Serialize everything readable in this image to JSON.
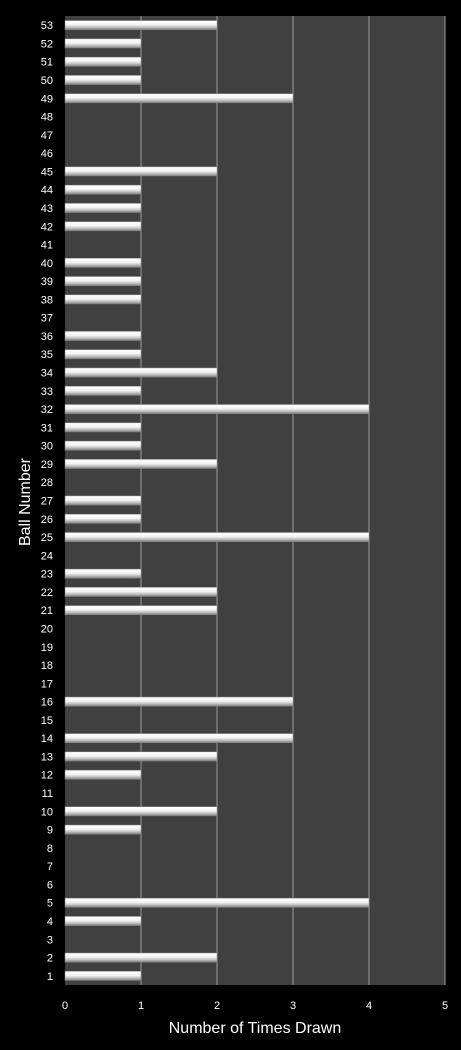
{
  "chart_data": {
    "type": "bar",
    "orientation": "horizontal",
    "title": "",
    "xlabel": "Number of Times Drawn",
    "ylabel": "Ball Number",
    "xlim": [
      0,
      5
    ],
    "xticks": [
      "0",
      "1",
      "2",
      "3",
      "4",
      "5"
    ],
    "grid": "vertical",
    "legend": "none",
    "colors": {
      "background": "#000000",
      "plot_area": "#404040",
      "bar": "#e6e6e6",
      "gridline": "#9a9a9a",
      "text": "#ffffff"
    },
    "categories": [
      "1",
      "2",
      "3",
      "4",
      "5",
      "6",
      "7",
      "8",
      "9",
      "10",
      "11",
      "12",
      "13",
      "14",
      "15",
      "16",
      "17",
      "18",
      "19",
      "20",
      "21",
      "22",
      "23",
      "24",
      "25",
      "26",
      "27",
      "28",
      "29",
      "30",
      "31",
      "32",
      "33",
      "34",
      "35",
      "36",
      "37",
      "38",
      "39",
      "40",
      "41",
      "42",
      "43",
      "44",
      "45",
      "46",
      "47",
      "48",
      "49",
      "50",
      "51",
      "52",
      "53"
    ],
    "values": [
      1,
      2,
      0,
      1,
      4,
      0,
      0,
      0,
      1,
      2,
      0,
      1,
      2,
      3,
      0,
      3,
      0,
      0,
      0,
      0,
      2,
      2,
      1,
      0,
      4,
      1,
      1,
      0,
      2,
      1,
      1,
      4,
      1,
      2,
      1,
      1,
      0,
      1,
      1,
      1,
      0,
      1,
      1,
      1,
      2,
      0,
      0,
      0,
      3,
      1,
      1,
      1,
      2
    ]
  }
}
